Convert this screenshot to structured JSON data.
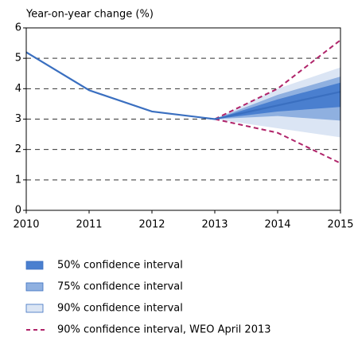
{
  "chart_data": {
    "type": "fan",
    "y_label": "Year-on-year change (%)",
    "categories": [
      "2010",
      "2011",
      "2012",
      "2013",
      "2014",
      "2015"
    ],
    "values": [
      5.2,
      3.95,
      3.25,
      3.0,
      3.45,
      3.9
    ],
    "color": "#3a6fc0",
    "bands": [
      {
        "name": "90% confidence interval",
        "color": "#dbe5f4",
        "lower": [
          null,
          null,
          null,
          3.0,
          2.7,
          2.4
        ],
        "upper": [
          null,
          null,
          null,
          3.0,
          4.0,
          4.7
        ]
      },
      {
        "name": "75% confidence interval",
        "color": "#8fb0e0",
        "lower": [
          null,
          null,
          null,
          3.0,
          3.1,
          2.95
        ],
        "upper": [
          null,
          null,
          null,
          3.0,
          3.8,
          4.4
        ]
      },
      {
        "name": "50% confidence interval",
        "color": "#4a7fcf",
        "lower": [
          null,
          null,
          null,
          3.0,
          3.25,
          3.4
        ],
        "upper": [
          null,
          null,
          null,
          3.0,
          3.65,
          4.2
        ]
      }
    ],
    "dashed": {
      "name": "90% confidence interval, WEO April 2013",
      "color": "#b0246a",
      "lower": [
        null,
        null,
        null,
        3.0,
        2.55,
        1.55
      ],
      "upper": [
        null,
        null,
        null,
        3.0,
        4.0,
        5.6
      ]
    },
    "ylim": [
      0,
      6
    ],
    "yticks": [
      0,
      1,
      2,
      3,
      4,
      5,
      6
    ],
    "grid": true
  }
}
